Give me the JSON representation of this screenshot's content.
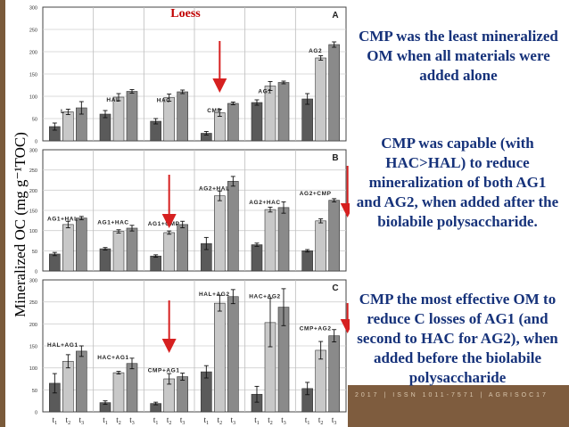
{
  "y_axis_label": "Mineralized OC (mg g⁻¹TOC)",
  "x_tick_labels": [
    "t1",
    "t2",
    "t3"
  ],
  "footer_text": "2017 | ISSN 1011-7571 | AGRISOC17",
  "notes": [
    "CMP was the least mineralized OM when all materials were added alone",
    "CMP was capable (with HAC>HAL) to reduce mineralization of both AG1 and AG2, when added after the biolabile polysaccharide.",
    "CMP the most effective OM to reduce C losses of AG1 (and second to HAC for AG2), when added before the biolabile polysaccharide"
  ],
  "colors": {
    "t1": "#5a5a5a",
    "t2": "#c8c8c8",
    "t3": "#8a8a8a",
    "arrow": "#d62020",
    "title": "#c00000",
    "text": "#16327a"
  },
  "chart_data": [
    {
      "type": "bar",
      "panel": "A",
      "title": "Loess",
      "ylim": [
        0,
        300
      ],
      "yticks": [
        0,
        50,
        100,
        150,
        200,
        250,
        300
      ],
      "categories": [
        "L",
        "HAL",
        "HAC",
        "CMP",
        "AG1",
        "AG2"
      ],
      "series": [
        {
          "name": "t1",
          "values": [
            32,
            60,
            44,
            17,
            86,
            94
          ],
          "errors": [
            8,
            8,
            6,
            4,
            6,
            12
          ]
        },
        {
          "name": "t2",
          "values": [
            65,
            98,
            97,
            63,
            123,
            186
          ],
          "errors": [
            6,
            8,
            8,
            8,
            10,
            5
          ]
        },
        {
          "name": "t3",
          "values": [
            74,
            111,
            110,
            84,
            131,
            216
          ],
          "errors": [
            14,
            4,
            4,
            3,
            3,
            6
          ]
        }
      ]
    },
    {
      "type": "bar",
      "panel": "B",
      "ylim": [
        0,
        300
      ],
      "yticks": [
        0,
        50,
        100,
        150,
        200,
        250,
        300
      ],
      "categories": [
        "AG1+HAL",
        "AG1+HAC",
        "AG1+CMP",
        "AG2+HAL",
        "AG2+HAC",
        "AG2+CMP"
      ],
      "series": [
        {
          "name": "t1",
          "values": [
            42,
            55,
            37,
            68,
            65,
            50
          ],
          "errors": [
            4,
            3,
            3,
            15,
            4,
            3
          ]
        },
        {
          "name": "t2",
          "values": [
            115,
            98,
            95,
            186,
            152,
            124
          ],
          "errors": [
            8,
            4,
            4,
            12,
            6,
            5
          ]
        },
        {
          "name": "t3",
          "values": [
            131,
            106,
            115,
            222,
            157,
            175
          ],
          "errors": [
            4,
            7,
            8,
            12,
            14,
            4
          ]
        }
      ]
    },
    {
      "type": "bar",
      "panel": "C",
      "ylim": [
        0,
        300
      ],
      "yticks": [
        0,
        50,
        100,
        150,
        200,
        250,
        300
      ],
      "categories": [
        "HAL+AG1",
        "HAC+AG1",
        "CMP+AG1",
        "HAL+AG2",
        "HAC+AG2",
        "CMP+AG2"
      ],
      "series": [
        {
          "name": "t1",
          "values": [
            65,
            21,
            19,
            91,
            40,
            53
          ],
          "errors": [
            22,
            4,
            3,
            14,
            18,
            14
          ]
        },
        {
          "name": "t2",
          "values": [
            115,
            89,
            75,
            247,
            203,
            140
          ],
          "errors": [
            15,
            3,
            12,
            18,
            55,
            20
          ]
        },
        {
          "name": "t3",
          "values": [
            138,
            110,
            80,
            262,
            238,
            173
          ],
          "errors": [
            12,
            12,
            8,
            16,
            42,
            14
          ]
        }
      ]
    }
  ]
}
